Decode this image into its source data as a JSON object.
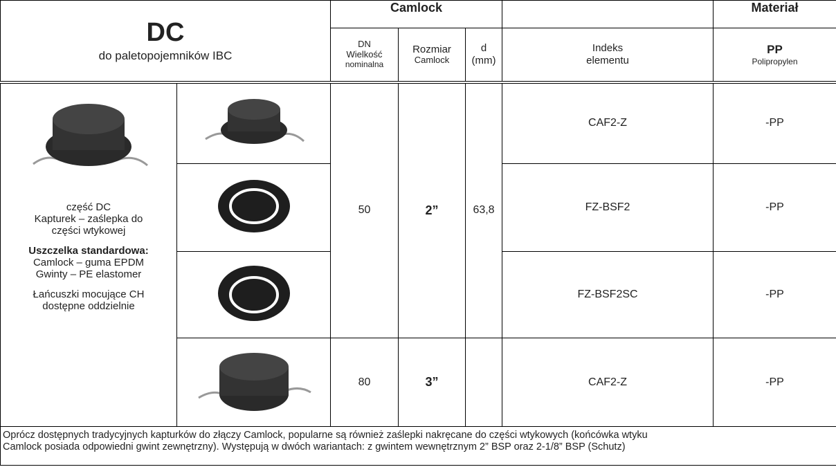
{
  "header": {
    "title": "DC",
    "subtitle": "do paletopojemników IBC",
    "group_camlock": "Camlock",
    "group_material": "Materiał",
    "col_dn": [
      "DN",
      "Wielkość",
      "nominalna"
    ],
    "col_size": [
      "Rozmiar",
      "Camlock"
    ],
    "col_d": [
      "d",
      "(mm)"
    ],
    "col_index": [
      "Indeks",
      "elementu"
    ],
    "col_material": [
      "PP",
      "Polipropylen"
    ]
  },
  "description": {
    "lines": [
      "część DC",
      "Kapturek – zaślepka do",
      "części wtykowej"
    ],
    "seal_title": "Uszczelka standardowa:",
    "seal_lines": [
      "Camlock – guma EPDM",
      "Gwinty – PE elastomer"
    ],
    "chain_lines": [
      "Łańcuszki mocujące CH",
      "dostępne oddzielnie"
    ]
  },
  "table": {
    "groups": [
      {
        "dn": "50",
        "size": "2”",
        "d": "63,8",
        "rows": [
          {
            "index": "CAF2-Z",
            "material": "-PP"
          },
          {
            "index": "FZ-BSF2",
            "material": "-PP"
          },
          {
            "index": "FZ-BSF2SC",
            "material": "-PP"
          }
        ]
      },
      {
        "dn": "80",
        "size": "3”",
        "rows": [
          {
            "index": "CAF2-Z",
            "material": "-PP"
          }
        ]
      }
    ]
  },
  "footer": [
    "Oprócz dostępnych tradycyjnych kapturków do złączy Camlock, popularne są również zaślepki nakręcane do części wtykowych (końcówka wtyku",
    "Camlock posiada odpowiedni gwint zewnętrzny). Występują w dwóch wariantach: z gwintem wewnętrznym 2” BSP oraz 2-1/8” BSP (Schutz)"
  ]
}
